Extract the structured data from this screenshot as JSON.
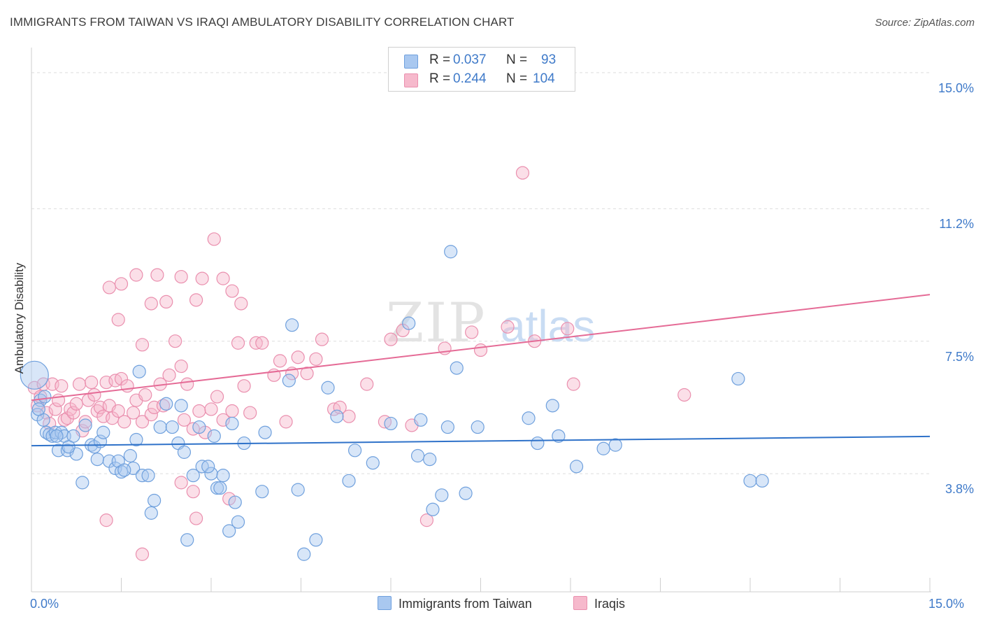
{
  "title": "IMMIGRANTS FROM TAIWAN VS IRAQI AMBULATORY DISABILITY CORRELATION CHART",
  "source": "Source: ZipAtlas.com",
  "watermark": {
    "zip": "ZIP",
    "atlas": "atlas"
  },
  "legend": {
    "series1": {
      "r_label": "R =",
      "r_value": "0.037",
      "n_label": "N =",
      "n_value": "93"
    },
    "series2": {
      "r_label": "R =",
      "r_value": "0.244",
      "n_label": "N =",
      "n_value": "104"
    }
  },
  "colors": {
    "blue_fill": "#a9c8f0",
    "blue_stroke": "#6fa0dd",
    "blue_line": "#2f72c9",
    "pink_fill": "#f6b9cc",
    "pink_stroke": "#ea8fae",
    "pink_line": "#e56b96",
    "axis_text": "#3f7ac9",
    "grid": "#dddddd"
  },
  "chart_data": {
    "type": "scatter",
    "title": "IMMIGRANTS FROM TAIWAN VS IRAQI AMBULATORY DISABILITY CORRELATION CHART",
    "xlabel": "",
    "ylabel": "Ambulatory Disability",
    "xlim": [
      0,
      15
    ],
    "ylim": [
      0.5,
      15.7
    ],
    "x_tick_labels": [
      "0.0%",
      "15.0%"
    ],
    "y_ticks": [
      3.8,
      7.5,
      11.2,
      15.0
    ],
    "y_tick_labels": [
      "3.8%",
      "7.5%",
      "11.2%",
      "15.0%"
    ],
    "grid": true,
    "legend_position": "top-center",
    "series": [
      {
        "name": "Immigrants from Taiwan",
        "color": "#a9c8f0",
        "trend": {
          "x": [
            0,
            15
          ],
          "y": [
            4.58,
            4.84
          ]
        },
        "points": [
          [
            0.05,
            6.55
          ],
          [
            0.1,
            5.45
          ],
          [
            0.15,
            5.85
          ],
          [
            0.2,
            5.3
          ],
          [
            0.25,
            4.95
          ],
          [
            0.3,
            4.9
          ],
          [
            0.35,
            4.85
          ],
          [
            0.4,
            4.95
          ],
          [
            0.45,
            4.45
          ],
          [
            0.5,
            4.95
          ],
          [
            0.55,
            4.85
          ],
          [
            0.6,
            4.45
          ],
          [
            0.7,
            4.85
          ],
          [
            0.75,
            4.35
          ],
          [
            0.85,
            3.55
          ],
          [
            0.9,
            5.15
          ],
          [
            1.0,
            4.6
          ],
          [
            1.05,
            4.55
          ],
          [
            1.1,
            4.2
          ],
          [
            1.15,
            4.7
          ],
          [
            1.2,
            4.95
          ],
          [
            1.3,
            4.15
          ],
          [
            1.4,
            3.95
          ],
          [
            1.45,
            4.15
          ],
          [
            1.5,
            3.85
          ],
          [
            1.65,
            4.3
          ],
          [
            1.7,
            3.95
          ],
          [
            1.75,
            4.75
          ],
          [
            1.85,
            3.75
          ],
          [
            1.95,
            3.75
          ],
          [
            2.0,
            2.7
          ],
          [
            2.05,
            3.05
          ],
          [
            2.15,
            5.1
          ],
          [
            2.25,
            5.75
          ],
          [
            2.35,
            5.1
          ],
          [
            2.45,
            4.65
          ],
          [
            2.5,
            5.7
          ],
          [
            2.55,
            4.4
          ],
          [
            2.6,
            1.95
          ],
          [
            2.7,
            3.75
          ],
          [
            2.8,
            5.1
          ],
          [
            2.85,
            4.0
          ],
          [
            3.0,
            3.8
          ],
          [
            3.05,
            4.85
          ],
          [
            3.1,
            3.4
          ],
          [
            3.15,
            3.4
          ],
          [
            3.3,
            2.2
          ],
          [
            3.35,
            5.2
          ],
          [
            3.45,
            2.45
          ],
          [
            3.55,
            4.65
          ],
          [
            3.85,
            3.3
          ],
          [
            3.9,
            4.95
          ],
          [
            4.3,
            6.4
          ],
          [
            4.35,
            7.95
          ],
          [
            4.45,
            3.35
          ],
          [
            4.55,
            1.55
          ],
          [
            4.75,
            1.95
          ],
          [
            4.95,
            6.2
          ],
          [
            5.1,
            5.4
          ],
          [
            5.4,
            4.45
          ],
          [
            5.7,
            4.1
          ],
          [
            6.0,
            5.2
          ],
          [
            6.3,
            8.0
          ],
          [
            6.45,
            4.3
          ],
          [
            6.5,
            5.3
          ],
          [
            6.65,
            4.2
          ],
          [
            6.7,
            2.8
          ],
          [
            6.85,
            3.2
          ],
          [
            6.95,
            5.1
          ],
          [
            7.0,
            10.0
          ],
          [
            7.1,
            6.75
          ],
          [
            7.25,
            3.25
          ],
          [
            7.45,
            5.1
          ],
          [
            8.3,
            5.35
          ],
          [
            8.45,
            4.65
          ],
          [
            8.7,
            5.7
          ],
          [
            8.8,
            4.85
          ],
          [
            9.1,
            4.0
          ],
          [
            9.55,
            4.5
          ],
          [
            9.75,
            4.6
          ],
          [
            11.8,
            6.45
          ],
          [
            12.0,
            3.6
          ],
          [
            12.2,
            3.6
          ],
          [
            0.12,
            5.6
          ],
          [
            0.22,
            5.95
          ],
          [
            0.42,
            4.85
          ],
          [
            0.62,
            4.55
          ],
          [
            1.55,
            3.9
          ],
          [
            2.95,
            4.0
          ],
          [
            3.2,
            3.75
          ],
          [
            3.4,
            3.0
          ],
          [
            5.3,
            3.6
          ],
          [
            1.8,
            6.65
          ]
        ]
      },
      {
        "name": "Iraqis",
        "color": "#f6b9cc",
        "trend": {
          "x": [
            0,
            15
          ],
          "y": [
            5.85,
            8.8
          ]
        },
        "points": [
          [
            0.05,
            6.2
          ],
          [
            0.1,
            5.7
          ],
          [
            0.15,
            5.95
          ],
          [
            0.2,
            6.3
          ],
          [
            0.25,
            5.5
          ],
          [
            0.3,
            5.2
          ],
          [
            0.35,
            6.3
          ],
          [
            0.4,
            5.6
          ],
          [
            0.45,
            5.85
          ],
          [
            0.5,
            6.25
          ],
          [
            0.55,
            5.3
          ],
          [
            0.6,
            5.35
          ],
          [
            0.65,
            5.6
          ],
          [
            0.7,
            5.5
          ],
          [
            0.75,
            5.75
          ],
          [
            0.8,
            6.3
          ],
          [
            0.85,
            5.0
          ],
          [
            0.9,
            5.25
          ],
          [
            0.95,
            5.85
          ],
          [
            1.0,
            6.35
          ],
          [
            1.05,
            6.0
          ],
          [
            1.1,
            5.55
          ],
          [
            1.15,
            5.65
          ],
          [
            1.2,
            5.4
          ],
          [
            1.25,
            6.35
          ],
          [
            1.3,
            5.7
          ],
          [
            1.35,
            5.35
          ],
          [
            1.4,
            6.4
          ],
          [
            1.45,
            5.55
          ],
          [
            1.5,
            6.45
          ],
          [
            1.55,
            5.25
          ],
          [
            1.6,
            6.25
          ],
          [
            1.7,
            5.5
          ],
          [
            1.75,
            5.85
          ],
          [
            1.85,
            5.25
          ],
          [
            1.9,
            6.0
          ],
          [
            2.0,
            5.45
          ],
          [
            2.05,
            5.65
          ],
          [
            2.15,
            6.3
          ],
          [
            2.2,
            5.7
          ],
          [
            2.3,
            6.55
          ],
          [
            2.4,
            7.5
          ],
          [
            2.5,
            6.8
          ],
          [
            2.55,
            5.3
          ],
          [
            2.6,
            6.3
          ],
          [
            2.7,
            5.05
          ],
          [
            2.8,
            5.55
          ],
          [
            2.9,
            4.95
          ],
          [
            3.0,
            5.6
          ],
          [
            3.1,
            5.95
          ],
          [
            3.2,
            5.3
          ],
          [
            3.3,
            3.1
          ],
          [
            3.35,
            5.55
          ],
          [
            3.45,
            7.45
          ],
          [
            3.55,
            6.25
          ],
          [
            3.65,
            5.5
          ],
          [
            3.75,
            7.45
          ],
          [
            3.85,
            7.45
          ],
          [
            4.05,
            6.55
          ],
          [
            4.15,
            6.95
          ],
          [
            4.25,
            5.25
          ],
          [
            4.35,
            6.6
          ],
          [
            4.45,
            7.05
          ],
          [
            4.6,
            6.6
          ],
          [
            4.75,
            7.0
          ],
          [
            4.85,
            7.55
          ],
          [
            5.05,
            5.6
          ],
          [
            5.15,
            5.65
          ],
          [
            5.3,
            5.4
          ],
          [
            5.6,
            6.3
          ],
          [
            5.9,
            5.25
          ],
          [
            6.0,
            7.55
          ],
          [
            6.2,
            7.8
          ],
          [
            6.35,
            5.15
          ],
          [
            6.6,
            2.5
          ],
          [
            6.9,
            7.3
          ],
          [
            7.35,
            7.75
          ],
          [
            7.5,
            7.25
          ],
          [
            7.95,
            7.9
          ],
          [
            8.2,
            12.2
          ],
          [
            8.4,
            7.5
          ],
          [
            8.95,
            7.85
          ],
          [
            9.05,
            6.3
          ],
          [
            10.9,
            6.0
          ],
          [
            1.3,
            9.0
          ],
          [
            1.5,
            9.1
          ],
          [
            1.45,
            8.1
          ],
          [
            1.75,
            9.35
          ],
          [
            1.85,
            7.4
          ],
          [
            2.0,
            8.55
          ],
          [
            2.1,
            9.35
          ],
          [
            2.25,
            8.6
          ],
          [
            2.5,
            9.3
          ],
          [
            2.75,
            8.65
          ],
          [
            2.85,
            9.25
          ],
          [
            3.05,
            10.35
          ],
          [
            3.2,
            9.25
          ],
          [
            3.35,
            8.9
          ],
          [
            3.5,
            8.55
          ],
          [
            1.25,
            2.5
          ],
          [
            1.85,
            1.55
          ],
          [
            2.5,
            3.55
          ],
          [
            2.7,
            3.3
          ],
          [
            2.75,
            2.55
          ]
        ]
      }
    ]
  },
  "bottom_legend": {
    "item1": "Immigrants from Taiwan",
    "item2": "Iraqis"
  }
}
